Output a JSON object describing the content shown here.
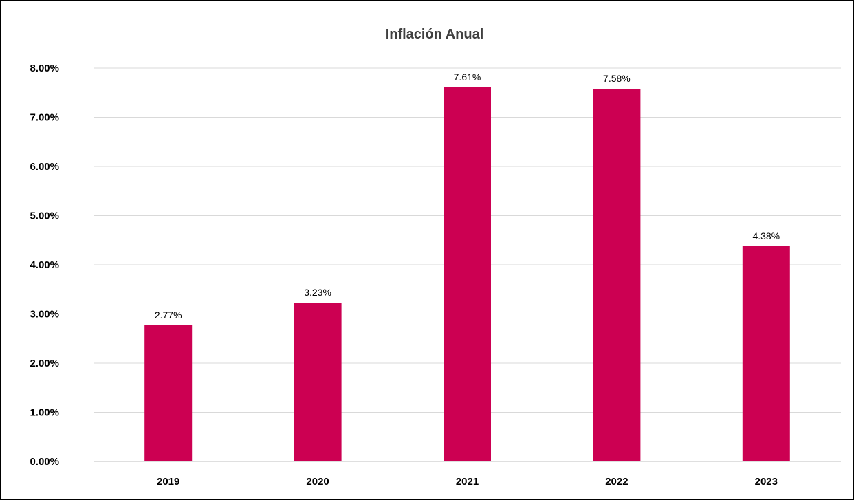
{
  "chart_data": {
    "type": "bar",
    "title": "Inflación Anual",
    "xlabel": "",
    "ylabel": "",
    "categories": [
      "2019",
      "2020",
      "2021",
      "2022",
      "2023"
    ],
    "values": [
      2.77,
      3.23,
      7.61,
      7.58,
      4.38
    ],
    "data_labels": [
      "2.77%",
      "3.23%",
      "7.61%",
      "7.58%",
      "4.38%"
    ],
    "ylim": [
      0,
      8
    ],
    "yticks": [
      0,
      1,
      2,
      3,
      4,
      5,
      6,
      7,
      8
    ],
    "ytick_labels": [
      "0.00%",
      "1.00%",
      "2.00%",
      "3.00%",
      "4.00%",
      "5.00%",
      "6.00%",
      "7.00%",
      "8.00%"
    ],
    "grid": true,
    "legend": "none",
    "colors": {
      "bar": "#CC0052",
      "grid": "#D9D9D9",
      "axis": "#BFBFBF"
    }
  }
}
